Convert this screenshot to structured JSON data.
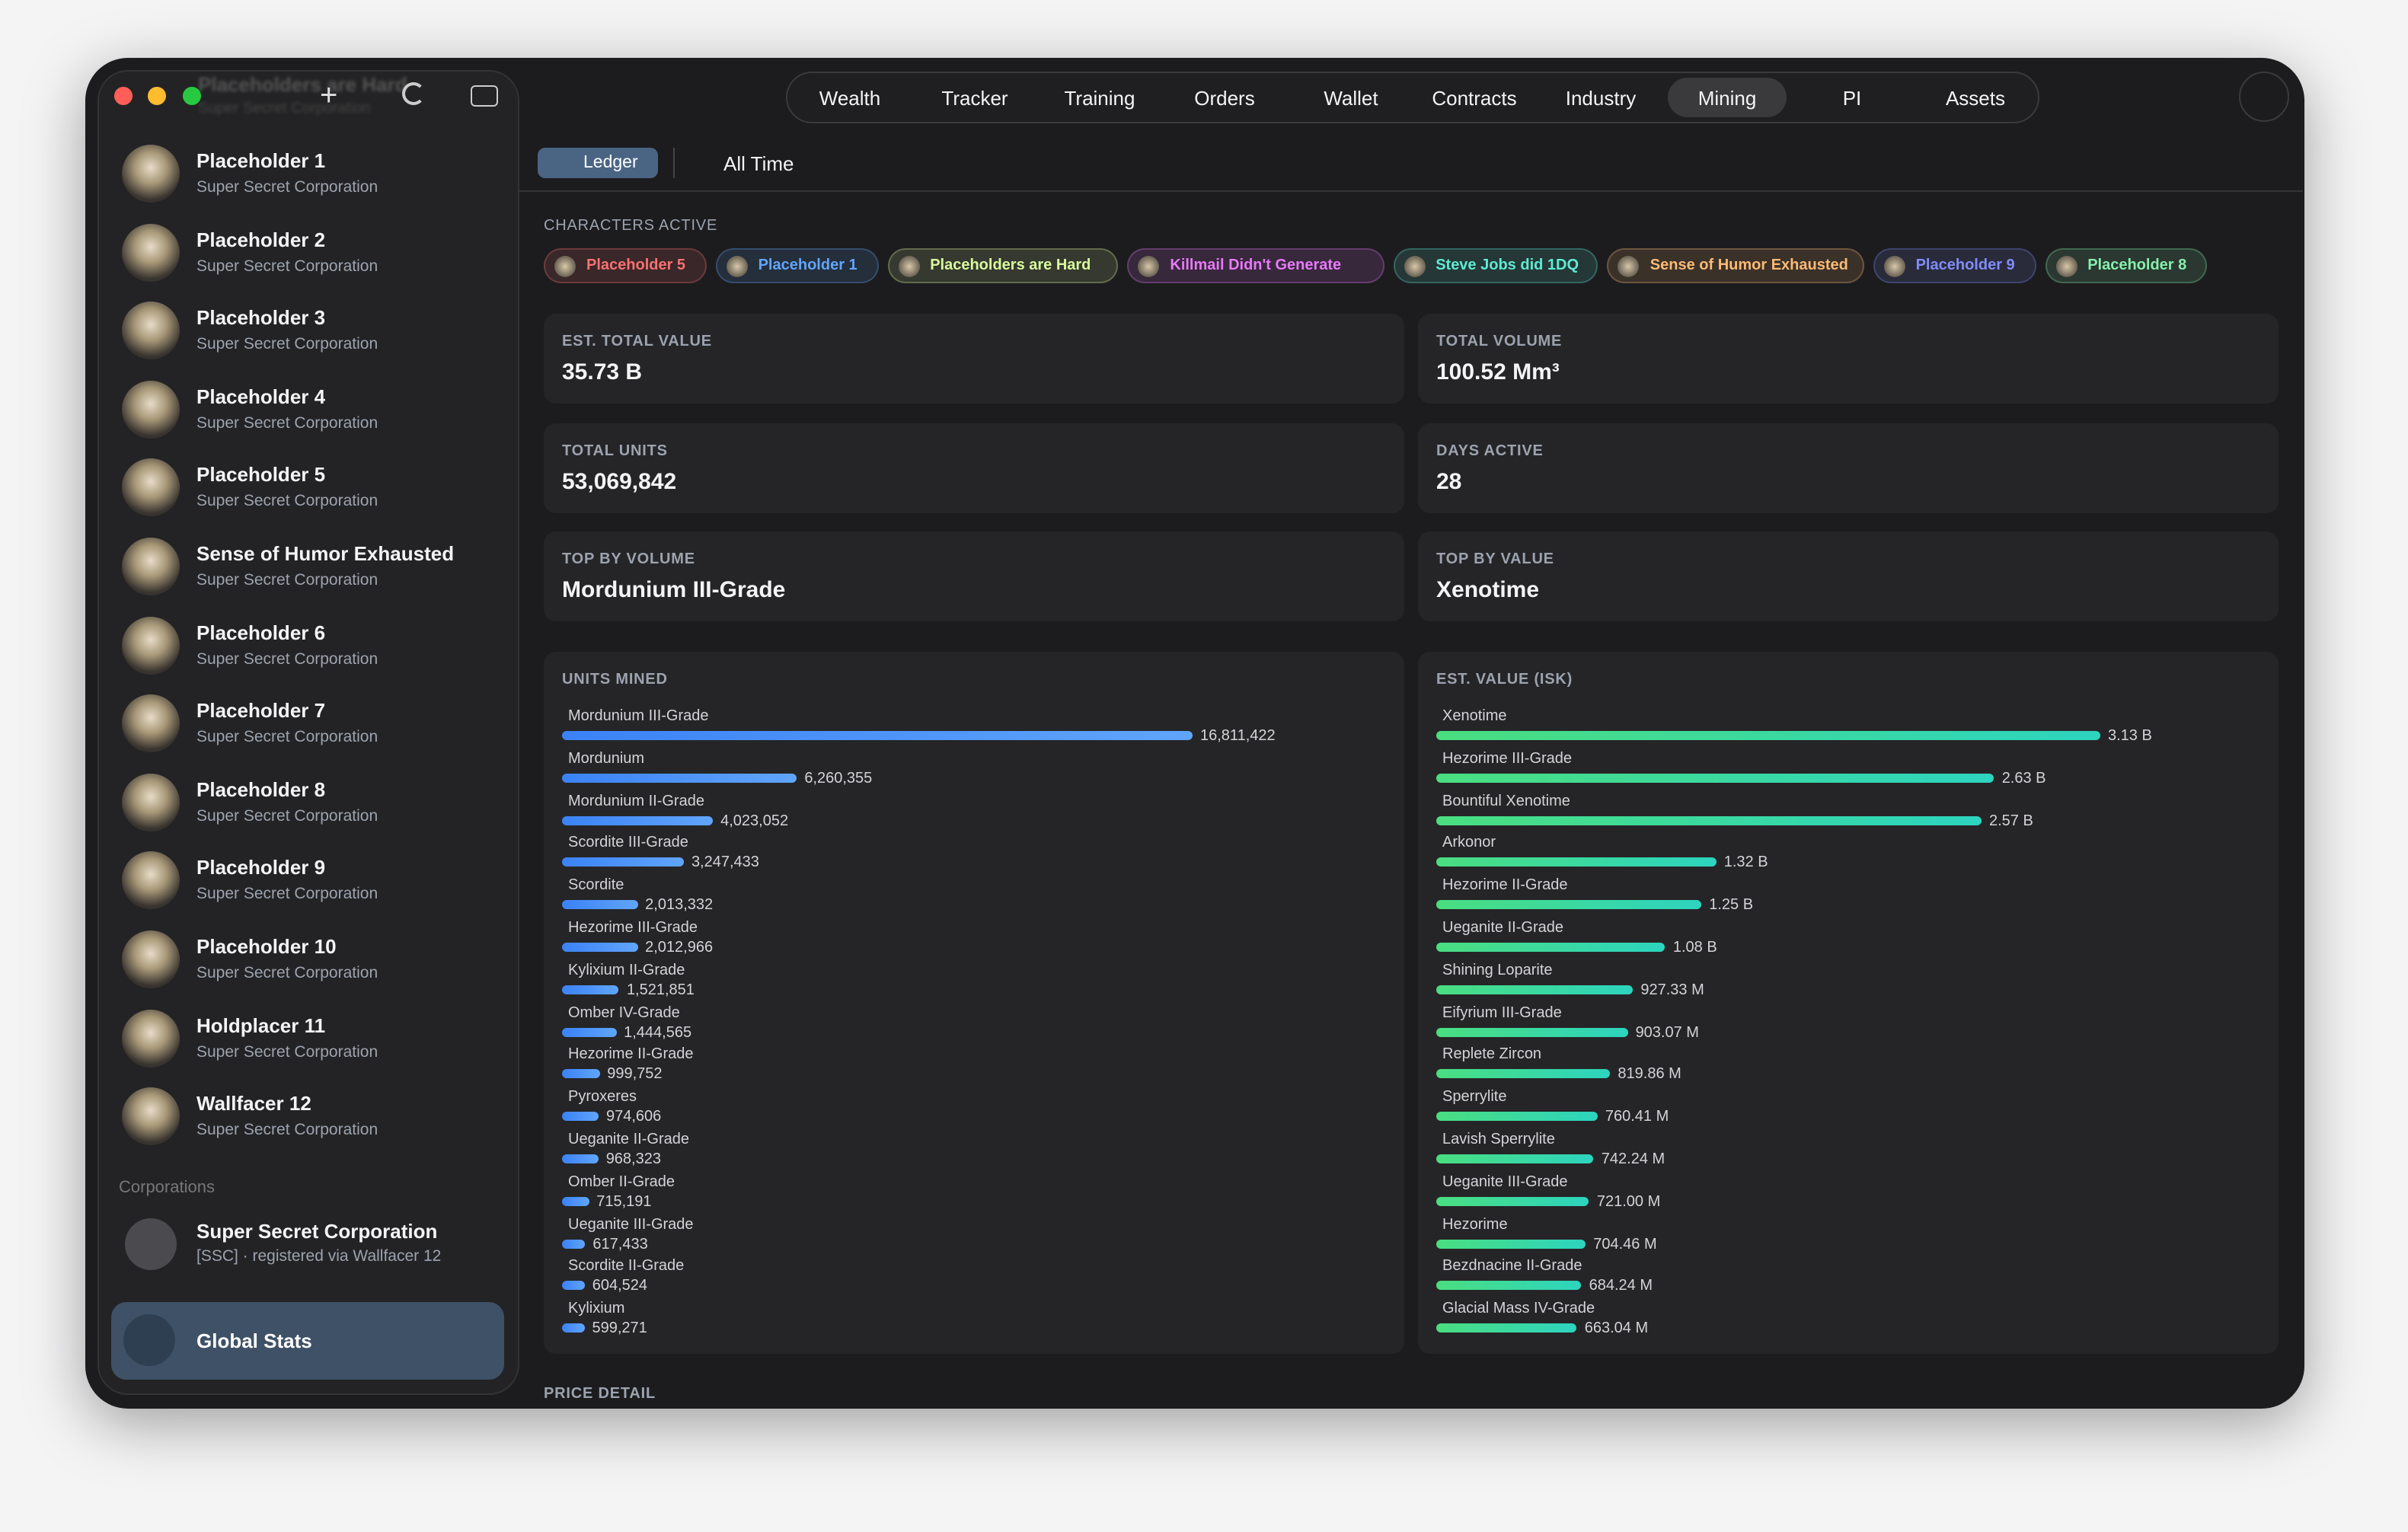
{
  "titlebar": {
    "name": "Placeholders are Hard",
    "corp": "Super Secret Corporation"
  },
  "nav": {
    "tabs": [
      "Wealth",
      "Tracker",
      "Training",
      "Orders",
      "Wallet",
      "Contracts",
      "Industry",
      "Mining",
      "PI",
      "Assets"
    ],
    "active_tab": 7
  },
  "sidebar": {
    "characters": [
      {
        "name": "Placeholder 1",
        "corp": "Super Secret Corporation"
      },
      {
        "name": "Placeholder 2",
        "corp": "Super Secret Corporation"
      },
      {
        "name": "Placeholder 3",
        "corp": "Super Secret Corporation"
      },
      {
        "name": "Placeholder 4",
        "corp": "Super Secret Corporation"
      },
      {
        "name": "Placeholder 5",
        "corp": "Super Secret Corporation"
      },
      {
        "name": "Sense of Humor Exhausted",
        "corp": "Super Secret Corporation"
      },
      {
        "name": "Placeholder 6",
        "corp": "Super Secret Corporation"
      },
      {
        "name": "Placeholder 7",
        "corp": "Super Secret Corporation"
      },
      {
        "name": "Placeholder 8",
        "corp": "Super Secret Corporation"
      },
      {
        "name": "Placeholder 9",
        "corp": "Super Secret Corporation"
      },
      {
        "name": "Placeholder 10",
        "corp": "Super Secret Corporation"
      },
      {
        "name": "Holdplacer 11",
        "corp": "Super Secret Corporation"
      },
      {
        "name": "Wallfacer 12",
        "corp": "Super Secret Corporation"
      }
    ],
    "corporations": {
      "heading": "Corporations",
      "items": [
        {
          "name": "Super Secret Corporation",
          "detail": "[SSC] · registered via Wallfacer 12"
        }
      ]
    },
    "global_stats": "Global Stats"
  },
  "toolbar": {
    "view": "Ledger",
    "range": "All Time"
  },
  "characters_active": {
    "heading": "CHARACTERS ACTIVE",
    "chips": [
      {
        "name": "Placeholder 5",
        "color": "#f87171"
      },
      {
        "name": "Placeholder 1",
        "color": "#60a5fa"
      },
      {
        "name": "Placeholders are Hard",
        "color": "#d9f99d"
      },
      {
        "name": "Killmail Didn't Generate",
        "color": "#e879f9"
      },
      {
        "name": "Steve Jobs did 1DQ",
        "color": "#5eead4"
      },
      {
        "name": "Sense of Humor Exhausted",
        "color": "#fdba74"
      },
      {
        "name": "Placeholder 9",
        "color": "#818cf8"
      },
      {
        "name": "Placeholder 8",
        "color": "#86efac"
      }
    ]
  },
  "stats": [
    {
      "label": "EST. TOTAL VALUE",
      "value": "35.73 B"
    },
    {
      "label": "TOTAL VOLUME",
      "value": "100.52 Mm³"
    },
    {
      "label": "TOTAL UNITS",
      "value": "53,069,842"
    },
    {
      "label": "DAYS ACTIVE",
      "value": "28"
    },
    {
      "label": "TOP BY VOLUME",
      "value": "Mordunium III-Grade"
    },
    {
      "label": "TOP BY VALUE",
      "value": "Xenotime"
    }
  ],
  "units_mined": {
    "type": "bar",
    "title": "UNITS MINED",
    "color": "#3b82f6",
    "categories": [
      "Mordunium III-Grade",
      "Mordunium",
      "Mordunium II-Grade",
      "Scordite III-Grade",
      "Scordite",
      "Hezorime III-Grade",
      "Kylixium II-Grade",
      "Omber IV-Grade",
      "Hezorime II-Grade",
      "Pyroxeres",
      "Ueganite II-Grade",
      "Omber II-Grade",
      "Ueganite III-Grade",
      "Scordite II-Grade",
      "Kylixium"
    ],
    "values": [
      16811422,
      6260355,
      4023052,
      3247433,
      2013332,
      2012966,
      1521851,
      1444565,
      999752,
      974606,
      968323,
      715191,
      617433,
      604524,
      599271
    ],
    "value_labels": [
      "16,811,422",
      "6,260,355",
      "4,023,052",
      "3,247,433",
      "2,013,332",
      "2,012,966",
      "1,521,851",
      "1,444,565",
      "999,752",
      "974,606",
      "968,323",
      "715,191",
      "617,433",
      "604,524",
      "599,271"
    ]
  },
  "est_value": {
    "type": "bar",
    "title": "EST. VALUE (ISK)",
    "color": "#4ade80",
    "categories": [
      "Xenotime",
      "Hezorime III-Grade",
      "Bountiful Xenotime",
      "Arkonor",
      "Hezorime II-Grade",
      "Ueganite II-Grade",
      "Shining Loparite",
      "Eifyrium III-Grade",
      "Replete Zircon",
      "Sperrylite",
      "Lavish Sperrylite",
      "Ueganite III-Grade",
      "Hezorime",
      "Bezdnacine II-Grade",
      "Glacial Mass IV-Grade"
    ],
    "values": [
      3130000000,
      2630000000,
      2570000000,
      1320000000,
      1250000000,
      1080000000,
      927330000,
      903070000,
      819860000,
      760410000,
      742240000,
      721000000,
      704460000,
      684240000,
      663040000
    ],
    "value_labels": [
      "3.13 B",
      "2.63 B",
      "2.57 B",
      "1.32 B",
      "1.25 B",
      "1.08 B",
      "927.33 M",
      "903.07 M",
      "819.86 M",
      "760.41 M",
      "742.24 M",
      "721.00 M",
      "704.46 M",
      "684.24 M",
      "663.04 M"
    ]
  },
  "price_detail": "PRICE DETAIL"
}
